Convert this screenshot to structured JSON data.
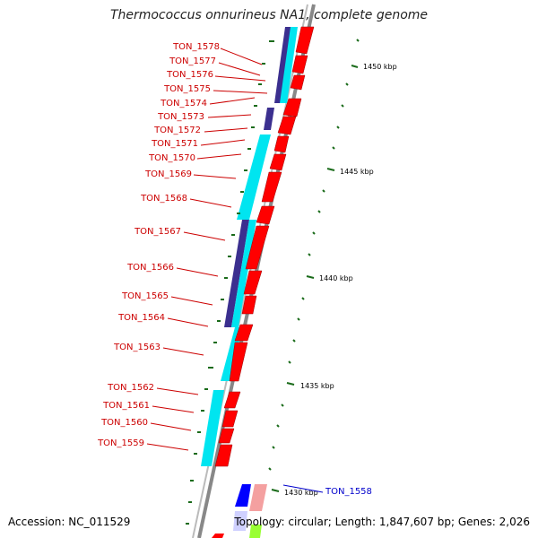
{
  "title": "Thermococcus onnurineus NA1, complete genome",
  "accession": "Accession: NC_011529",
  "summary": "Topology: circular; Length: 1,847,607 bp; Genes: 2,026",
  "colors": {
    "gene_label": "#cc0000",
    "highlight_label": "#0000cc",
    "forward_strand": "#ff0000",
    "cyan_track": "#00e5f0",
    "purple_track": "#3b2f8f",
    "tick": "#1a6b1a"
  },
  "genes": [
    {
      "label": "TON_1578"
    },
    {
      "label": "TON_1577"
    },
    {
      "label": "TON_1576"
    },
    {
      "label": "TON_1575"
    },
    {
      "label": "TON_1574"
    },
    {
      "label": "TON_1573"
    },
    {
      "label": "TON_1572"
    },
    {
      "label": "TON_1571"
    },
    {
      "label": "TON_1570"
    },
    {
      "label": "TON_1569"
    },
    {
      "label": "TON_1568"
    },
    {
      "label": "TON_1567"
    },
    {
      "label": "TON_1566"
    },
    {
      "label": "TON_1565"
    },
    {
      "label": "TON_1564"
    },
    {
      "label": "TON_1563"
    },
    {
      "label": "TON_1562"
    },
    {
      "label": "TON_1561"
    },
    {
      "label": "TON_1560"
    },
    {
      "label": "TON_1559"
    }
  ],
  "highlight_gene": "TON_1558",
  "kbp_marks": [
    "1450 kbp",
    "1445 kbp",
    "1440 kbp",
    "1435 kbp",
    "1430 kbp"
  ]
}
